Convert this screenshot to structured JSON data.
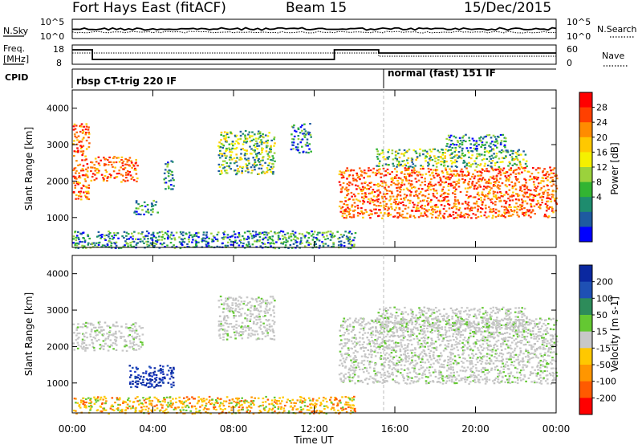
{
  "header": {
    "station": "Fort Hays East (fitACF)",
    "beam": "Beam 15",
    "date": "15/Dec/2015"
  },
  "noise_panel": {
    "left_label": "N.Sky",
    "right_label": "N.Search",
    "left_ticks": [
      "10^5",
      "10^0"
    ],
    "right_ticks": [
      "10^5",
      "10^0"
    ]
  },
  "freq_panel": {
    "left_label_1": "Freq.",
    "left_label_2": "[MHz]",
    "right_label": "Nave",
    "left_ticks": [
      "18",
      "8"
    ],
    "right_ticks": [
      "60",
      "0"
    ]
  },
  "cpid": {
    "label": "CPID",
    "modes": [
      {
        "name": "rbsp CT-trig 220 IF",
        "start_hour": 0,
        "end_hour": 15.2
      },
      {
        "name": "normal (fast) 151 IF",
        "start_hour": 15.2,
        "end_hour": 24
      }
    ]
  },
  "chart_data": [
    {
      "type": "heatmap",
      "name": "power-panel",
      "ylabel": "Slant Range [km]",
      "yticks": [
        "4000",
        "3000",
        "2000",
        "1000"
      ],
      "ylim": [
        180,
        4500
      ],
      "xlim": [
        0,
        24
      ],
      "colorbar": {
        "label": "Power [dB]",
        "ticks": [
          "28",
          "24",
          "20",
          "16",
          "12",
          "8",
          "4"
        ],
        "colors": [
          "#ff0000",
          "#ff4000",
          "#ff8c00",
          "#ffc800",
          "#f5f000",
          "#9bd23c",
          "#32b432",
          "#1e8c6e",
          "#1e5aa0",
          "#0000ff"
        ]
      },
      "regions": [
        {
          "h0": 0.8,
          "h1": 3.2,
          "r0": 2000,
          "r1": 2700,
          "level": "high"
        },
        {
          "h0": 0.0,
          "h1": 0.8,
          "r0": 1500,
          "r1": 3600,
          "level": "high"
        },
        {
          "h0": 3.0,
          "h1": 4.2,
          "r0": 1100,
          "r1": 1500,
          "level": "low"
        },
        {
          "h0": 4.5,
          "h1": 5.0,
          "r0": 1800,
          "r1": 2600,
          "level": "low"
        },
        {
          "h0": 7.2,
          "h1": 10.0,
          "r0": 2200,
          "r1": 3400,
          "level": "mid"
        },
        {
          "h0": 10.8,
          "h1": 11.8,
          "r0": 2800,
          "r1": 3600,
          "level": "low"
        },
        {
          "h0": 13.2,
          "h1": 24.0,
          "r0": 1000,
          "r1": 2400,
          "level": "high"
        },
        {
          "h0": 15.0,
          "h1": 22.5,
          "r0": 2400,
          "r1": 2900,
          "level": "mid"
        },
        {
          "h0": 18.5,
          "h1": 21.5,
          "r0": 2900,
          "r1": 3300,
          "level": "low"
        },
        {
          "h0": 0.0,
          "h1": 14.0,
          "r0": 180,
          "r1": 650,
          "level": "low"
        }
      ]
    },
    {
      "type": "heatmap",
      "name": "velocity-panel",
      "xlabel": "Time UT",
      "ylabel": "Slant Range [km]",
      "yticks": [
        "4000",
        "3000",
        "2000",
        "1000"
      ],
      "xticks": [
        "00:00",
        "04:00",
        "08:00",
        "12:00",
        "16:00",
        "20:00",
        "00:00"
      ],
      "ylim": [
        180,
        4500
      ],
      "xlim": [
        0,
        24
      ],
      "colorbar": {
        "label": "Velocity [m s-1]",
        "ticks": [
          "200",
          "100",
          "50",
          "15",
          "-15",
          "-50",
          "-100",
          "-200"
        ],
        "colors": [
          "#0a28a0",
          "#1e50b4",
          "#2d8c5a",
          "#64c832",
          "#c8c8c8",
          "#ffc800",
          "#ff9600",
          "#ff5a00",
          "#ff0000"
        ]
      },
      "regions": [
        {
          "h0": 0.0,
          "h1": 3.5,
          "r0": 1900,
          "r1": 2700,
          "level": "gray"
        },
        {
          "h0": 2.8,
          "h1": 5.0,
          "r0": 900,
          "r1": 1500,
          "level": "blue"
        },
        {
          "h0": 7.2,
          "h1": 10.0,
          "r0": 2200,
          "r1": 3400,
          "level": "gray"
        },
        {
          "h0": 13.2,
          "h1": 24.0,
          "r0": 1000,
          "r1": 2800,
          "level": "gray"
        },
        {
          "h0": 15.0,
          "h1": 22.5,
          "r0": 2400,
          "r1": 3100,
          "level": "gray"
        },
        {
          "h0": 0.0,
          "h1": 14.0,
          "r0": 180,
          "r1": 650,
          "level": "orange"
        }
      ]
    }
  ]
}
